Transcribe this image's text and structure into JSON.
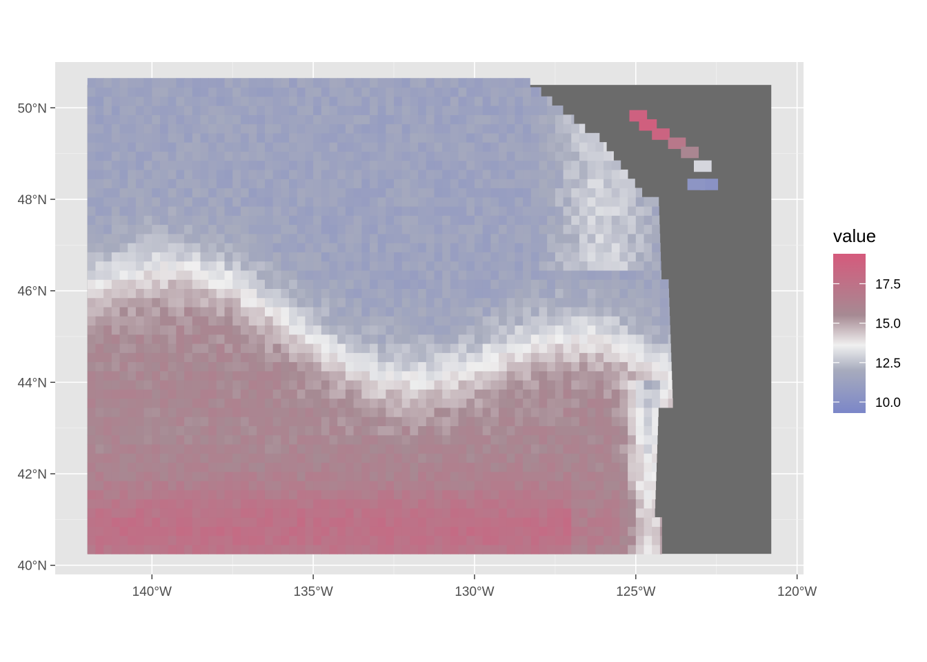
{
  "chart_data": {
    "type": "heatmap",
    "title": "",
    "xlabel": "",
    "ylabel": "",
    "x_axis": {
      "range": [
        -143,
        -119.8
      ],
      "ticks": [
        -140,
        -135,
        -130,
        -125,
        -120
      ],
      "tick_labels": [
        "140°W",
        "135°W",
        "130°W",
        "125°W",
        "120°W"
      ]
    },
    "y_axis": {
      "range": [
        39.8,
        51
      ],
      "ticks": [
        40,
        42,
        44,
        46,
        48,
        50
      ],
      "tick_labels": [
        "40°N",
        "42°N",
        "44°N",
        "46°N",
        "48°N",
        "50°N"
      ]
    },
    "grid": true,
    "raster_extent": {
      "lon": [
        -142,
        -120.8
      ],
      "lat": [
        40.25,
        50.5
      ]
    },
    "land_color": "#6b6b6b",
    "panel_background": "#e5e5e5",
    "legend": {
      "title": "value",
      "placement": "right",
      "range": [
        9.3,
        19.4
      ],
      "ticks": [
        10.0,
        12.5,
        15.0,
        17.5
      ],
      "tick_labels": [
        "10.0",
        "12.5",
        "15.0",
        "17.5"
      ],
      "colors": [
        {
          "value": 9.3,
          "color": "#7b86c8"
        },
        {
          "value": 12.0,
          "color": "#a7abbd"
        },
        {
          "value": 13.6,
          "color": "#f0f0f0"
        },
        {
          "value": 15.5,
          "color": "#a68a93"
        },
        {
          "value": 19.4,
          "color": "#d55a7c"
        }
      ]
    }
  }
}
